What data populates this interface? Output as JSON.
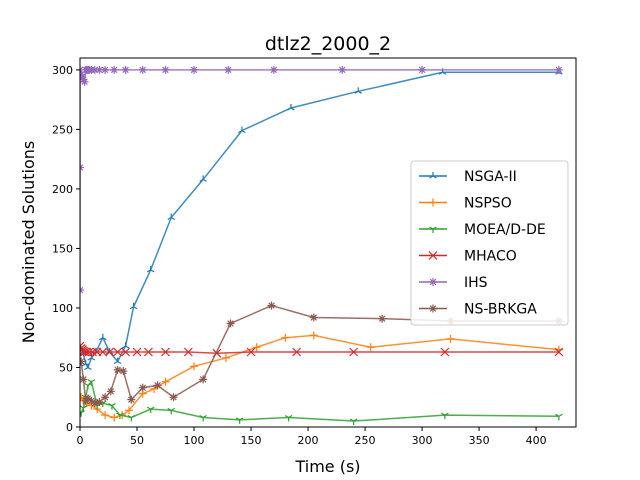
{
  "chart_data": {
    "type": "line",
    "title": "dtlz2_2000_2",
    "xlabel": "Time (s)",
    "ylabel": "Non-dominated Solutions",
    "xlim": [
      0,
      435
    ],
    "ylim": [
      0,
      310
    ],
    "xticks": [
      0,
      50,
      100,
      150,
      200,
      250,
      300,
      350,
      400
    ],
    "yticks": [
      0,
      50,
      100,
      150,
      200,
      250,
      300
    ],
    "grid": false,
    "legend_position": "center-right",
    "series": [
      {
        "name": "NSGA-II",
        "color": "#1f77b4",
        "marker": "tri-up",
        "x": [
          1,
          3,
          5,
          7,
          10,
          14,
          20,
          26,
          33,
          40,
          47,
          62,
          80,
          108,
          142,
          185,
          244,
          318,
          420
        ],
        "y": [
          65,
          62,
          53,
          50,
          58,
          63,
          75,
          63,
          55,
          68,
          101,
          132,
          176,
          208,
          249,
          268,
          282,
          298,
          298
        ]
      },
      {
        "name": "NSPSO",
        "color": "#ff7f0e",
        "marker": "plus",
        "x": [
          1,
          3,
          6,
          10,
          15,
          22,
          30,
          37,
          43,
          55,
          65,
          75,
          100,
          128,
          155,
          180,
          205,
          255,
          325,
          420
        ],
        "y": [
          25,
          22,
          20,
          18,
          15,
          10,
          8,
          10,
          14,
          28,
          32,
          38,
          51,
          58,
          67,
          75,
          77,
          67,
          74,
          65
        ]
      },
      {
        "name": "MOEA/D-DE",
        "color": "#2ca02c",
        "marker": "tri-down",
        "x": [
          1,
          3,
          5,
          7,
          10,
          15,
          20,
          28,
          35,
          45,
          62,
          80,
          108,
          140,
          183,
          240,
          320,
          420
        ],
        "y": [
          12,
          16,
          25,
          35,
          38,
          18,
          20,
          18,
          10,
          8,
          15,
          14,
          8,
          6,
          8,
          5,
          10,
          9
        ]
      },
      {
        "name": "MHACO",
        "color": "#d62728",
        "marker": "x",
        "x": [
          0,
          1,
          2,
          3,
          4,
          6,
          8,
          11,
          15,
          20,
          26,
          33,
          40,
          50,
          60,
          75,
          95,
          120,
          150,
          190,
          240,
          320,
          420
        ],
        "y": [
          68,
          66,
          65,
          64,
          63,
          63,
          63,
          63,
          63,
          63,
          63,
          63,
          63,
          63,
          63,
          63,
          63,
          62,
          63,
          63,
          63,
          63,
          63
        ]
      },
      {
        "name": "IHS",
        "color": "#9467bd",
        "marker": "star",
        "x": [
          0,
          0,
          0,
          1,
          2,
          3,
          4,
          5,
          6,
          7,
          8,
          10,
          13,
          17,
          22,
          30,
          40,
          55,
          75,
          100,
          130,
          170,
          230,
          300,
          420
        ],
        "y": [
          115,
          218,
          300,
          296,
          294,
          292,
          290,
          300,
          300,
          300,
          300,
          300,
          300,
          300,
          300,
          300,
          300,
          300,
          300,
          300,
          300,
          300,
          300,
          300,
          300
        ]
      },
      {
        "name": "NS-BRKGA",
        "color": "#8c564b",
        "marker": "asterisk",
        "x": [
          1,
          3,
          5,
          7,
          10,
          13,
          17,
          22,
          27,
          33,
          38,
          45,
          55,
          68,
          82,
          108,
          132,
          168,
          205,
          265,
          325,
          420
        ],
        "y": [
          55,
          40,
          22,
          24,
          22,
          20,
          21,
          25,
          30,
          48,
          47,
          23,
          33,
          35,
          25,
          40,
          87,
          102,
          92,
          91,
          89,
          89
        ]
      }
    ]
  }
}
